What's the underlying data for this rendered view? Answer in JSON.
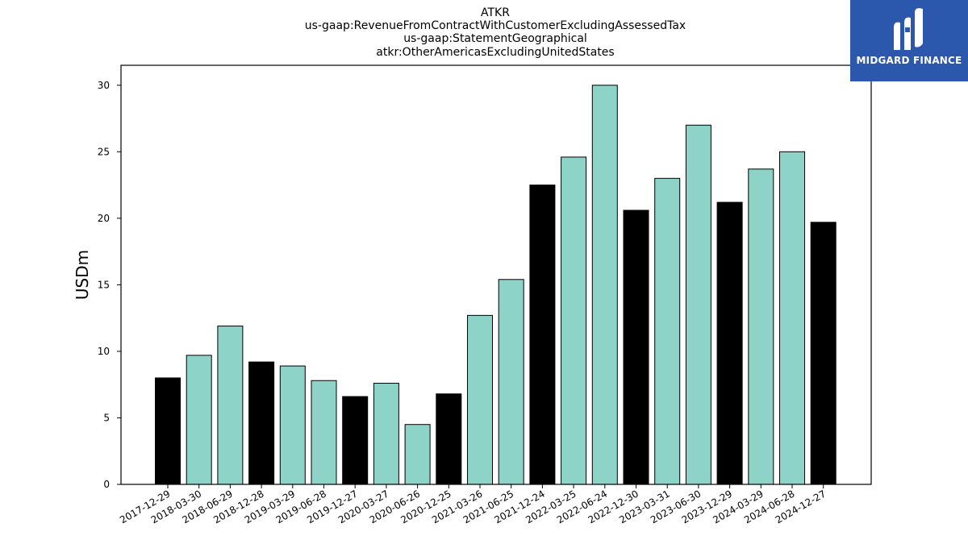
{
  "colors": {
    "black_bar": "#000000",
    "teal_bar": "#8dd3c7",
    "logo_bg": "#2b57ad"
  },
  "logo": {
    "text": "MIDGARD FINANCE",
    "icon": "midgard-logo-icon"
  },
  "chart_data": {
    "type": "bar",
    "title": [
      "ATKR",
      "us-gaap:RevenueFromContractWithCustomerExcludingAssessedTax",
      "us-gaap:StatementGeographical",
      "atkr:OtherAmericasExcludingUnitedStates"
    ],
    "xlabel": "",
    "ylabel": "USDm",
    "ylim": [
      0,
      31.5
    ],
    "yticks": [
      0,
      5,
      10,
      15,
      20,
      25,
      30
    ],
    "grid": false,
    "categories": [
      "2017-12-29",
      "2018-03-30",
      "2018-06-29",
      "2018-12-28",
      "2019-03-29",
      "2019-06-28",
      "2019-12-27",
      "2020-03-27",
      "2020-06-26",
      "2020-12-25",
      "2021-03-26",
      "2021-06-25",
      "2021-12-24",
      "2022-03-25",
      "2022-06-24",
      "2022-12-30",
      "2023-03-31",
      "2023-06-30",
      "2023-12-29",
      "2024-03-29",
      "2024-06-28",
      "2024-12-27"
    ],
    "values": [
      8.0,
      9.7,
      11.9,
      9.2,
      8.9,
      7.8,
      6.6,
      7.6,
      4.5,
      6.8,
      12.7,
      15.4,
      22.5,
      24.6,
      30.0,
      20.6,
      23.0,
      27.0,
      21.2,
      23.7,
      25.0,
      19.7
    ],
    "bar_colors": [
      "#000000",
      "#8dd3c7",
      "#8dd3c7",
      "#000000",
      "#8dd3c7",
      "#8dd3c7",
      "#000000",
      "#8dd3c7",
      "#8dd3c7",
      "#000000",
      "#8dd3c7",
      "#8dd3c7",
      "#000000",
      "#8dd3c7",
      "#8dd3c7",
      "#000000",
      "#8dd3c7",
      "#8dd3c7",
      "#000000",
      "#8dd3c7",
      "#8dd3c7",
      "#000000"
    ]
  }
}
